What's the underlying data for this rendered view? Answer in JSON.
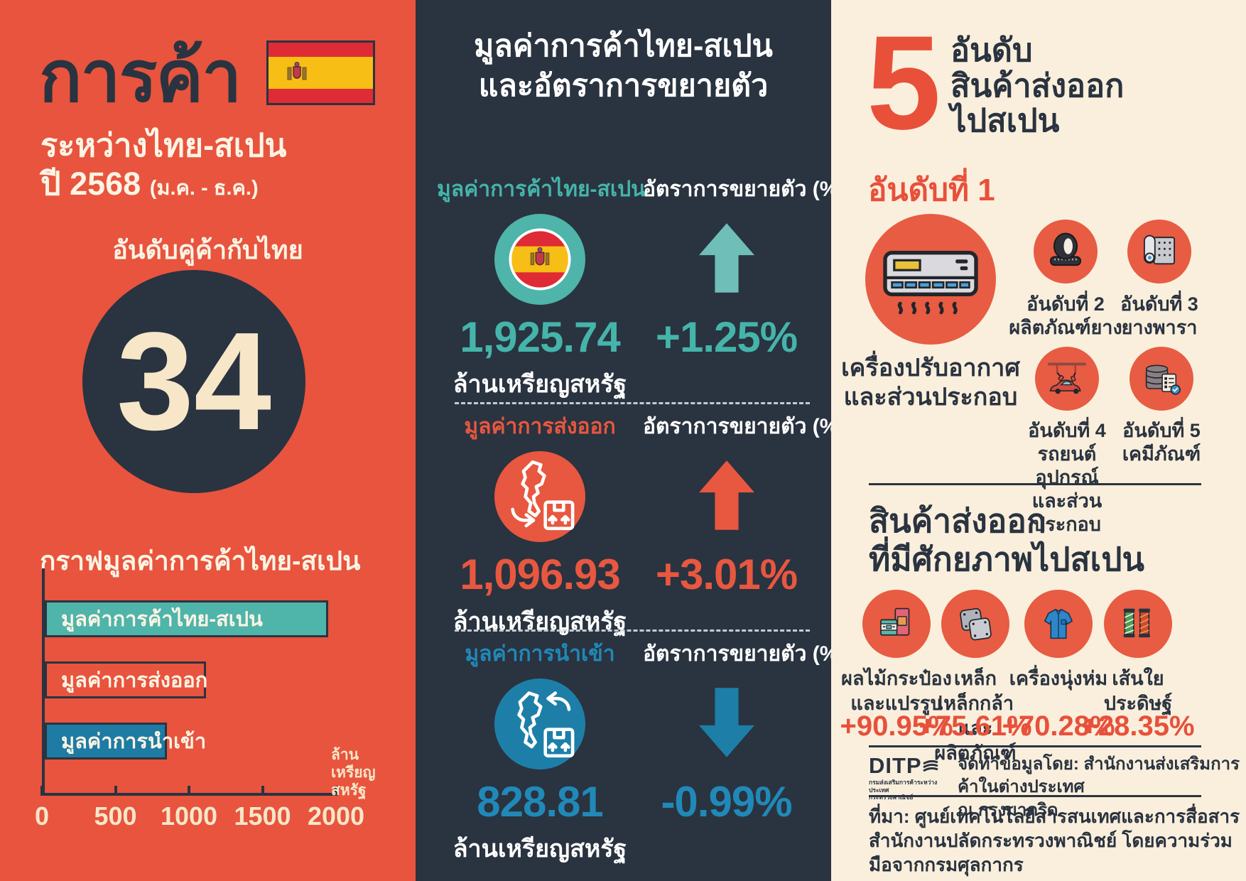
{
  "colors": {
    "background_red": "#E8543E",
    "panel_dark": "#2A3340",
    "panel_cream": "#FAEFDC",
    "accent_teal": "#4FB4AA",
    "accent_red": "#E8573F",
    "accent_blue": "#1D7FA8",
    "number_cream": "#F7E7C8",
    "flag_red": "#DF2B35",
    "flag_yellow": "#F7BE15"
  },
  "left": {
    "title": "การค้า",
    "subtitle_line1": "ระหว่างไทย-สเปน",
    "subtitle_line2": "ปี 2568",
    "subtitle_period": "(ม.ค. - ธ.ค.)",
    "rank_label": "อันดับคู่ค้ากับไทย",
    "rank_value": "34",
    "chart_title": "กราฟมูลค่าการค้าไทย-สเปน",
    "unit_note_line1": "ล้าน",
    "unit_note_line2": "เหรียญ",
    "unit_note_line3": "สหรัฐ"
  },
  "chart_data": {
    "type": "bar",
    "orientation": "horizontal",
    "title": "กราฟมูลค่าการค้าไทย-สเปน",
    "categories": [
      "มูลค่าการค้าไทย-สเปน",
      "มูลค่าการส่งออก",
      "มูลค่าการนำเข้า"
    ],
    "values": [
      1925.74,
      1096.93,
      828.81
    ],
    "unit": "ล้านเหรียญสหรัฐ",
    "xlabel": "ล้านเหรียญสหรัฐ",
    "xlim": [
      0,
      2000
    ],
    "xticks": [
      0,
      500,
      1000,
      1500,
      2000
    ],
    "bar_colors": [
      "#4FB4AA",
      "transparent",
      "#1D7BA4"
    ],
    "grid": false,
    "legend": false
  },
  "middle": {
    "heading_line1": "มูลค่าการค้าไทย-สเปน",
    "heading_line2": "และอัตราการขยายตัว",
    "growth_label": "อัตราการขยายตัว (%)",
    "unit": "ล้านเหรียญสหรัฐ",
    "sections": [
      {
        "label": "มูลค่าการค้าไทย-สเปน",
        "value": "1,925.74",
        "growth": "+1.25%",
        "direction": "up",
        "color": "#45B4AA"
      },
      {
        "label": "มูลค่าการส่งออก",
        "value": "1,096.93",
        "growth": "+3.01%",
        "direction": "up",
        "color": "#E8573F"
      },
      {
        "label": "มูลค่าการนำเข้า",
        "value": "828.81",
        "growth": "-0.99%",
        "direction": "down",
        "color": "#2089B8"
      }
    ]
  },
  "right": {
    "big_number": "5",
    "heading_line1": "อันดับ",
    "heading_line2": "สินค้าส่งออก",
    "heading_line3": "ไปสเปน",
    "rank1_label": "อันดับที่ 1",
    "rank1_name_line1": "เครื่องปรับอากาศ",
    "rank1_name_line2": "และส่วนประกอบ",
    "ranks": [
      {
        "label": "อันดับที่ 2",
        "name_line1": "ผลิตภัณฑ์ยาง",
        "name_line2": ""
      },
      {
        "label": "อันดับที่ 3",
        "name_line1": "ยางพารา",
        "name_line2": ""
      },
      {
        "label": "อันดับที่ 4",
        "name_line1": "รถยนต์ อุปกรณ์",
        "name_line2": "และส่วนประกอบ"
      },
      {
        "label": "อันดับที่ 5",
        "name_line1": "เคมีภัณฑ์",
        "name_line2": ""
      }
    ],
    "potential_heading_line1": "สินค้าส่งออก",
    "potential_heading_line2": "ที่มีศักยภาพไปสเปน",
    "potential_items": [
      {
        "name_line1": "ผลไม้กระป๋อง",
        "name_line2": "และแปรรูป",
        "growth": "+90.95%"
      },
      {
        "name_line1": "เหล็ก เหล็กกล้า",
        "name_line2": "และผลิตภัณฑ์",
        "growth": "+75.61%"
      },
      {
        "name_line1": "เครื่องนุ่งห่ม",
        "name_line2": "",
        "growth": "+70.28%"
      },
      {
        "name_line1": "เส้นใยประดิษฐ์",
        "name_line2": "",
        "growth": "+28.35%"
      }
    ],
    "footer": {
      "logo_text": "DITP",
      "logo_tagline_line1": "กรมส่งเสริมการค้าระหว่างประเทศ",
      "logo_tagline_line2": "กระทรวงพาณิชย์",
      "credit_line1": "จัดทำข้อมูลโดย: สำนักงานส่งเสริมการค้าในต่างประเทศ",
      "credit_line2": "ณ กรุงมาดริด",
      "source_line1": "ที่มา: ศูนย์เทคโนโลยีสารสนเทศและการสื่อสาร",
      "source_line2": "สำนักงานปลัดกระทรวงพาณิชย์ โดยความร่วมมือจากกรมศุลกากร"
    }
  }
}
